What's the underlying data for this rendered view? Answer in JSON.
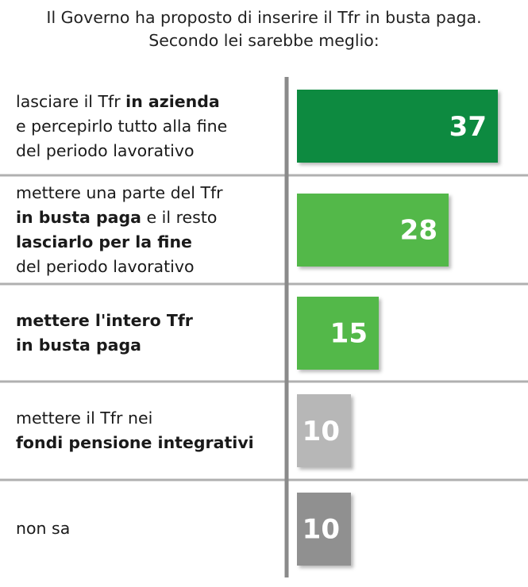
{
  "title_lines": [
    "Il Governo ha proposto di inserire il Tfr in busta paga.",
    "Secondo lei sarebbe meglio:"
  ],
  "colors": {
    "bar_1": "#0a8a40",
    "bar_2": "#52b848",
    "bar_3": "#52b848",
    "bar_4": "#b7b7b7",
    "bar_5": "#909090",
    "divider": "#b0b0b0",
    "axis": "#8a8a8a",
    "value_text": "#ffffff"
  },
  "chart_data": {
    "type": "bar",
    "orientation": "horizontal",
    "categories": [
      "lasciare il Tfr in azienda e percepirlo tutto alla fine del periodo lavorativo",
      "mettere una parte del Tfr in busta paga e il resto lasciarlo per la fine del periodo lavorativo",
      "mettere l'intero Tfr in busta paga",
      "mettere il Tfr nei fondi pensione integrativi",
      "non sa"
    ],
    "category_lines": [
      [
        [
          {
            "t": "lasciare il Tfr ",
            "b": false
          },
          {
            "t": "in azienda",
            "b": true
          }
        ],
        [
          {
            "t": "e percepirlo tutto alla fine",
            "b": false
          }
        ],
        [
          {
            "t": "del periodo lavorativo",
            "b": false
          }
        ]
      ],
      [
        [
          {
            "t": "mettere una parte del Tfr",
            "b": false
          }
        ],
        [
          {
            "t": "in busta paga",
            "b": true
          },
          {
            "t": " e il resto",
            "b": false
          }
        ],
        [
          {
            "t": "lasciarlo per la fine",
            "b": true
          }
        ],
        [
          {
            "t": "del periodo lavorativo",
            "b": false
          }
        ]
      ],
      [
        [
          {
            "t": "mettere l'intero Tfr",
            "b": true
          }
        ],
        [
          {
            "t": "in busta paga",
            "b": true
          }
        ]
      ],
      [
        [
          {
            "t": "mettere il Tfr nei",
            "b": false
          }
        ],
        [
          {
            "t": "fondi pensione integrativi",
            "b": true
          }
        ]
      ],
      [
        [
          {
            "t": "non sa",
            "b": false
          }
        ]
      ]
    ],
    "values": [
      37,
      28,
      15,
      10,
      10
    ],
    "xlim": [
      0,
      37
    ],
    "grid": false,
    "legend": "none",
    "xlabel": "",
    "ylabel": ""
  }
}
